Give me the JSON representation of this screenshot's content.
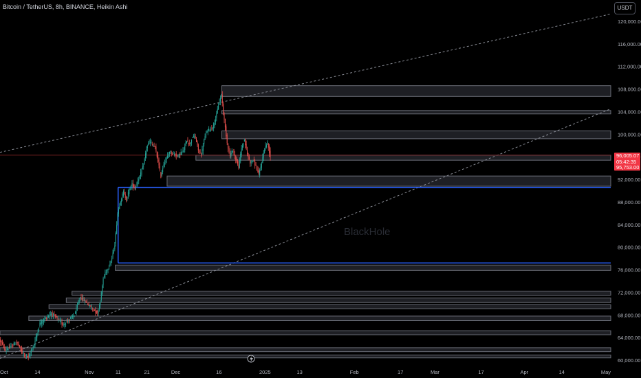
{
  "header": {
    "title": "Bitcoin / TetherUS, 8h, BINANCE, Heikin Ashi",
    "currency_button": "USDT"
  },
  "watermark": "BlackHole",
  "colors": {
    "background": "#000000",
    "up": "#26a69a",
    "down": "#ef5350",
    "zone_fill": "#1e1f24",
    "zone_border": "#6b6e78",
    "blue_line": "#2962ff",
    "trend_line": "#8a8d96",
    "price_label_bg": "#f23645"
  },
  "price_labels": {
    "current": "96,005.07",
    "countdown": "05:42:35",
    "secondary": "95,753.00"
  },
  "chart_data": {
    "type": "candlestick",
    "style": "Heikin Ashi",
    "symbol": "Bitcoin / TetherUS",
    "interval": "8h",
    "exchange": "BINANCE",
    "ylim": [
      59000,
      122000
    ],
    "y_ticks": [
      60000,
      64000,
      68000,
      72000,
      76000,
      80000,
      84000,
      88000,
      92000,
      96000,
      100000,
      104000,
      108000,
      112000,
      116000,
      120000
    ],
    "y_tick_labels": [
      "60,000.00",
      "64,000.00",
      "68,000.00",
      "72,000.00",
      "76,000.00",
      "80,000.00",
      "84,000.00",
      "88,000.00",
      "92,000.00",
      "96,000.00",
      "100,000.00",
      "104,000.00",
      "108,000.00",
      "112,000.00",
      "116,000.00",
      "120,000.00"
    ],
    "x_range": [
      "2024-10-01",
      "2025-05-01"
    ],
    "x_ticks": [
      {
        "date": "2024-10-01",
        "label": "Oct"
      },
      {
        "date": "2024-10-14",
        "label": "14"
      },
      {
        "date": "2024-11-01",
        "label": "Nov"
      },
      {
        "date": "2024-11-11",
        "label": "11"
      },
      {
        "date": "2024-11-21",
        "label": "21"
      },
      {
        "date": "2024-12-01",
        "label": "Dec"
      },
      {
        "date": "2024-12-16",
        "label": "16"
      },
      {
        "date": "2025-01-01",
        "label": "2025"
      },
      {
        "date": "2025-01-13",
        "label": "13"
      },
      {
        "date": "2025-02-01",
        "label": "Feb"
      },
      {
        "date": "2025-02-17",
        "label": "17"
      },
      {
        "date": "2025-03-01",
        "label": "Mar"
      },
      {
        "date": "2025-03-17",
        "label": "17"
      },
      {
        "date": "2025-04-01",
        "label": "Apr"
      },
      {
        "date": "2025-04-14",
        "label": "14"
      },
      {
        "date": "2025-05-01",
        "label": "May"
      }
    ],
    "last_price": 96005.07,
    "price_path": [
      [
        "2024-10-01",
        63600
      ],
      [
        "2024-10-03",
        61800
      ],
      [
        "2024-10-05",
        62400
      ],
      [
        "2024-10-07",
        63200
      ],
      [
        "2024-10-09",
        61300
      ],
      [
        "2024-10-11",
        60500
      ],
      [
        "2024-10-13",
        62800
      ],
      [
        "2024-10-15",
        66500
      ],
      [
        "2024-10-17",
        67400
      ],
      [
        "2024-10-19",
        68300
      ],
      [
        "2024-10-21",
        67400
      ],
      [
        "2024-10-23",
        66300
      ],
      [
        "2024-10-25",
        67100
      ],
      [
        "2024-10-27",
        68000
      ],
      [
        "2024-10-29",
        71200
      ],
      [
        "2024-10-31",
        70300
      ],
      [
        "2024-11-02",
        69300
      ],
      [
        "2024-11-04",
        68300
      ],
      [
        "2024-11-05",
        70500
      ],
      [
        "2024-11-06",
        74500
      ],
      [
        "2024-11-07",
        75800
      ],
      [
        "2024-11-08",
        76600
      ],
      [
        "2024-11-09",
        78000
      ],
      [
        "2024-11-10",
        80500
      ],
      [
        "2024-11-11",
        86000
      ],
      [
        "2024-11-12",
        88200
      ],
      [
        "2024-11-13",
        89800
      ],
      [
        "2024-11-14",
        88400
      ],
      [
        "2024-11-15",
        90200
      ],
      [
        "2024-11-16",
        91200
      ],
      [
        "2024-11-17",
        90400
      ],
      [
        "2024-11-18",
        91800
      ],
      [
        "2024-11-19",
        93000
      ],
      [
        "2024-11-20",
        94600
      ],
      [
        "2024-11-21",
        97500
      ],
      [
        "2024-11-22",
        98700
      ],
      [
        "2024-11-23",
        98200
      ],
      [
        "2024-11-24",
        97600
      ],
      [
        "2024-11-25",
        95300
      ],
      [
        "2024-11-26",
        92500
      ],
      [
        "2024-11-27",
        94800
      ],
      [
        "2024-11-28",
        95600
      ],
      [
        "2024-11-29",
        97000
      ],
      [
        "2024-11-30",
        96600
      ],
      [
        "2024-12-02",
        96200
      ],
      [
        "2024-12-04",
        97200
      ],
      [
        "2024-12-05",
        99000
      ],
      [
        "2024-12-06",
        98200
      ],
      [
        "2024-12-07",
        99600
      ],
      [
        "2024-12-08",
        99400
      ],
      [
        "2024-12-09",
        97200
      ],
      [
        "2024-12-10",
        96300
      ],
      [
        "2024-12-11",
        99000
      ],
      [
        "2024-12-12",
        100600
      ],
      [
        "2024-12-13",
        100900
      ],
      [
        "2024-12-14",
        101300
      ],
      [
        "2024-12-15",
        102700
      ],
      [
        "2024-12-16",
        105200
      ],
      [
        "2024-12-17",
        106900
      ],
      [
        "2024-12-18",
        102500
      ],
      [
        "2024-12-19",
        98500
      ],
      [
        "2024-12-20",
        96200
      ],
      [
        "2024-12-21",
        97200
      ],
      [
        "2024-12-22",
        95600
      ],
      [
        "2024-12-23",
        94200
      ],
      [
        "2024-12-24",
        97500
      ],
      [
        "2024-12-25",
        99000
      ],
      [
        "2024-12-26",
        96500
      ],
      [
        "2024-12-27",
        95000
      ],
      [
        "2024-12-28",
        95500
      ],
      [
        "2024-12-29",
        94300
      ],
      [
        "2024-12-30",
        92800
      ],
      [
        "2024-12-31",
        95000
      ],
      [
        "2025-01-01",
        97500
      ],
      [
        "2025-01-02",
        98500
      ],
      [
        "2025-01-03",
        96005
      ]
    ],
    "zones": [
      {
        "from": "2024-12-17",
        "y_top": 108600,
        "y_bottom": 106700
      },
      {
        "from": "2024-12-17",
        "y_top": 104200,
        "y_bottom": 103600
      },
      {
        "from": "2024-12-17",
        "y_top": 100600,
        "y_bottom": 99200
      },
      {
        "from": "2024-12-08",
        "y_top": 96300,
        "y_bottom": 95400
      },
      {
        "from": "2024-11-28",
        "y_top": 92600,
        "y_bottom": 90800
      },
      {
        "from": "2024-11-10",
        "y_top": 76800,
        "y_bottom": 75900
      },
      {
        "from": "2024-10-26",
        "y_top": 72200,
        "y_bottom": 71500
      },
      {
        "from": "2024-10-24",
        "y_top": 71000,
        "y_bottom": 70200
      },
      {
        "from": "2024-10-18",
        "y_top": 69800,
        "y_bottom": 69100
      },
      {
        "from": "2024-10-11",
        "y_top": 67800,
        "y_bottom": 67000
      },
      {
        "from": "2024-10-01",
        "y_top": 65200,
        "y_bottom": 64500
      },
      {
        "from": "2024-10-01",
        "y_top": 62200,
        "y_bottom": 61500
      },
      {
        "from": "2024-10-01",
        "y_top": 60900,
        "y_bottom": 60400
      }
    ],
    "blue_levels": [
      {
        "from": "2024-11-11",
        "price": 90600
      },
      {
        "from": "2024-11-11",
        "price": 77200
      }
    ],
    "blue_connector": {
      "date": "2024-11-11",
      "from_price": 77200,
      "to_price": 90600
    },
    "red_level": {
      "price": 96300
    },
    "trend_lines": [
      {
        "x1": "2024-10-01",
        "y1": 96800,
        "x2": "2025-05-01",
        "y2": 121300
      },
      {
        "x1": "2024-10-01",
        "y1": 60300,
        "x2": "2025-05-01",
        "y2": 104500
      }
    ]
  }
}
